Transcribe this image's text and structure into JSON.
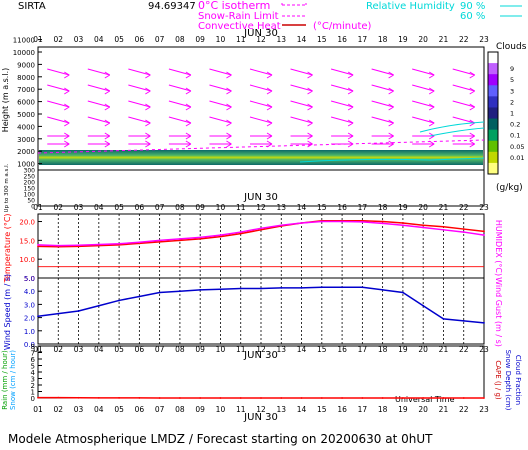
{
  "header": {
    "site": "SIRTA",
    "coords": "94.69347",
    "legend_isotherm": "0°C isotherm",
    "legend_snow_rain": "Snow-Rain Limit",
    "legend_convective": "Convective Heat",
    "legend_convective_unit": "(°C/minute)",
    "legend_rh": "Relative Humidity",
    "rh_90": "90 %",
    "rh_60": "60 %"
  },
  "date_label": "JUN 30",
  "hours": [
    "01",
    "02",
    "03",
    "04",
    "05",
    "06",
    "07",
    "08",
    "09",
    "10",
    "11",
    "12",
    "13",
    "14",
    "15",
    "16",
    "17",
    "18",
    "19",
    "20",
    "21",
    "22",
    "23"
  ],
  "footer": {
    "xlabel": "Universal Time",
    "caption": "Modele Atmospherique LMDZ / Forecast starting on 20200630 at 0hUT"
  },
  "colors": {
    "magenta": "#ff00ff",
    "red": "#ff0000",
    "blue": "#0000cc",
    "cyan": "#00d8d8"
  },
  "chart_data": [
    {
      "type": "heatmap",
      "title": "Clouds",
      "ylabel": "Height (m a.s.l.)",
      "ylabel2": "Up to 300 m a.s.l.",
      "y_ticks_upper": [
        "11000",
        "10000",
        "9000",
        "8000",
        "7000",
        "6000",
        "5000",
        "4000",
        "3000",
        "2000",
        "1000"
      ],
      "y_ticks_lower": [
        "300",
        "250",
        "200",
        "150",
        "100",
        "50",
        "0"
      ],
      "colorbar_label": "(g/kg)",
      "colorbar_ticks": [
        "9",
        "5",
        "3",
        "2",
        "1",
        "0.2",
        "0.1",
        "0.05",
        "0.01"
      ],
      "colorbar_colors": [
        "#ffffff",
        "#c060ff",
        "#a000ff",
        "#6060ff",
        "#3030c0",
        "#202080",
        "#006060",
        "#00a060",
        "#60c000",
        "#c0d800",
        "#ffff80"
      ],
      "cloud_layer_m": 1600
    },
    {
      "type": "line",
      "ylabel": "Temperature (°C)",
      "ylabel2": "HUMIDEX (°C)",
      "y_ticks": [
        "5.0",
        "10.0",
        "15.0",
        "20.0"
      ],
      "ylim": [
        5,
        22
      ],
      "series": [
        {
          "name": "Temperature",
          "values": [
            13.4,
            13.3,
            13.4,
            13.6,
            13.8,
            14.2,
            14.6,
            15.0,
            15.4,
            16.0,
            16.8,
            17.8,
            18.8,
            19.6,
            20.2,
            20.2,
            20.2,
            20.0,
            19.6,
            19.0,
            18.6,
            18.0,
            17.4
          ]
        },
        {
          "name": "HUMIDEX",
          "values": [
            13.8,
            13.6,
            13.7,
            13.9,
            14.1,
            14.5,
            15.0,
            15.4,
            15.8,
            16.4,
            17.2,
            18.2,
            19.0,
            19.6,
            20.0,
            20.0,
            19.9,
            19.5,
            19.0,
            18.4,
            17.8,
            17.2,
            16.4
          ]
        }
      ]
    },
    {
      "type": "line",
      "ylabel": "Wind Speed (m / s)",
      "ylabel2": "Wind Gust (m / s)",
      "y_ticks": [
        "0.0",
        "1.0",
        "2.0",
        "3.0",
        "4.0",
        "5.0"
      ],
      "ylim": [
        0,
        5
      ],
      "series": [
        {
          "name": "Wind Speed",
          "values": [
            2.1,
            2.3,
            2.5,
            2.9,
            3.3,
            3.6,
            3.9,
            4.0,
            4.1,
            4.15,
            4.2,
            4.2,
            4.25,
            4.25,
            4.3,
            4.3,
            4.3,
            4.1,
            3.9,
            2.9,
            1.9,
            1.75,
            1.6
          ]
        }
      ]
    },
    {
      "type": "line",
      "ylabel": "Rain (mm / hour)",
      "ylabel2": "Snow (cm / hour)",
      "ylabel3": "CAPE (J / g)",
      "ylabel4": "Snow Depth (cm)",
      "ylabel5": "Cloud Fraction",
      "y_ticks": [
        "0",
        "1",
        "2",
        "3",
        "4",
        "5",
        "6",
        "7",
        "8"
      ],
      "ylim": [
        0,
        8
      ],
      "series": [
        {
          "name": "Rain",
          "values": [
            0.05,
            0.05,
            0.03,
            0.02,
            0.02,
            0.01,
            0,
            0,
            0,
            0,
            0,
            0,
            0,
            0,
            0,
            0,
            0,
            0,
            0,
            0,
            0,
            0,
            0
          ]
        }
      ]
    }
  ]
}
